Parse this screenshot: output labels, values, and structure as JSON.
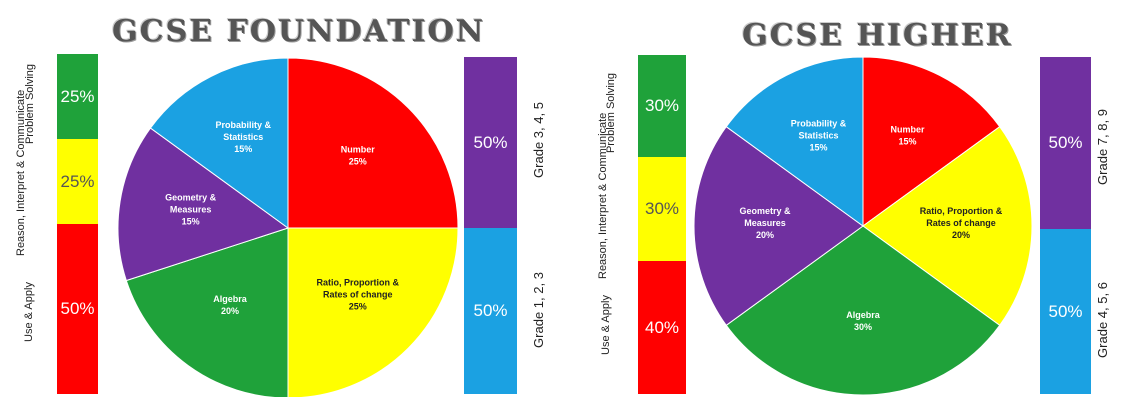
{
  "chart_data": [
    {
      "type": "pie",
      "title": "GCSE FOUNDATION",
      "slices": [
        {
          "label": "Number",
          "value": 25,
          "value_label": "25%",
          "color": "#ff0000",
          "text_color": "#ffffff"
        },
        {
          "label": "Ratio, Proportion & Rates of change",
          "value": 25,
          "value_label": "25%",
          "color": "#ffff00",
          "text_color": "#222222"
        },
        {
          "label": "Algebra",
          "value": 20,
          "value_label": "20%",
          "color": "#1fa23a",
          "text_color": "#ffffff"
        },
        {
          "label": "Geometry & Measures",
          "value": 15,
          "value_label": "15%",
          "color": "#7030a0",
          "text_color": "#ffffff"
        },
        {
          "label": "Probability & Statistics",
          "value": 15,
          "value_label": "15%",
          "color": "#1ba1e2",
          "text_color": "#ffffff"
        }
      ],
      "left_bar": [
        {
          "label": "Problem Solving",
          "value": 25,
          "value_label": "25%",
          "color": "#1fa23a"
        },
        {
          "label": "Reason, Interpret & Communicate",
          "value": 25,
          "value_label": "25%",
          "color": "#ffff00"
        },
        {
          "label": "Use & Apply",
          "value": 50,
          "value_label": "50%",
          "color": "#ff0000"
        }
      ],
      "right_bar": [
        {
          "label": "Grade 3, 4, 5",
          "value": 50,
          "value_label": "50%",
          "color": "#7030a0"
        },
        {
          "label": "Grade 1, 2, 3",
          "value": 50,
          "value_label": "50%",
          "color": "#1ba1e2"
        }
      ]
    },
    {
      "type": "pie",
      "title": "GCSE HIGHER",
      "slices": [
        {
          "label": "Number",
          "value": 15,
          "value_label": "15%",
          "color": "#ff0000",
          "text_color": "#ffffff"
        },
        {
          "label": "Ratio, Proportion & Rates of change",
          "value": 20,
          "value_label": "20%",
          "color": "#ffff00",
          "text_color": "#222222"
        },
        {
          "label": "Algebra",
          "value": 30,
          "value_label": "30%",
          "color": "#1fa23a",
          "text_color": "#ffffff"
        },
        {
          "label": "Geometry & Measures",
          "value": 20,
          "value_label": "20%",
          "color": "#7030a0",
          "text_color": "#ffffff"
        },
        {
          "label": "Probability & Statistics",
          "value": 15,
          "value_label": "15%",
          "color": "#1ba1e2",
          "text_color": "#ffffff"
        }
      ],
      "left_bar": [
        {
          "label": "Problem Solving",
          "value": 30,
          "value_label": "30%",
          "color": "#1fa23a"
        },
        {
          "label": "Reason, Interpret & Communicate",
          "value": 30,
          "value_label": "30%",
          "color": "#ffff00"
        },
        {
          "label": "Use & Apply",
          "value": 40,
          "value_label": "40%",
          "color": "#ff0000"
        }
      ],
      "right_bar": [
        {
          "label": "Grade 7, 8, 9",
          "value": 50,
          "value_label": "50%",
          "color": "#7030a0"
        },
        {
          "label": "Grade 4, 5, 6",
          "value": 50,
          "value_label": "50%",
          "color": "#1ba1e2"
        }
      ]
    }
  ]
}
